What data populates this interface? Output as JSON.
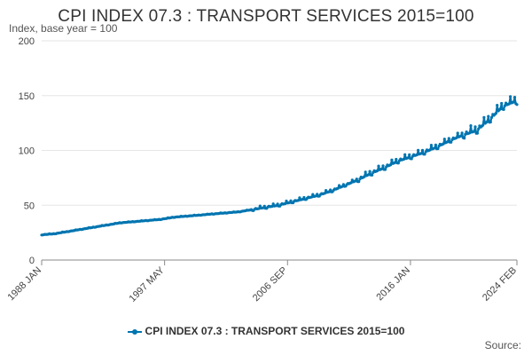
{
  "chart_data": {
    "type": "line",
    "title": "CPI INDEX 07.3 : TRANSPORT SERVICES 2015=100",
    "ylabel": "Index, base year = 100",
    "xlabel": "",
    "ylim": [
      0,
      200
    ],
    "yticks": [
      0,
      50,
      100,
      150,
      200
    ],
    "x_range": [
      "1988 JAN",
      "2024 FEB"
    ],
    "xtick_labels": [
      "1988 JAN",
      "1997 MAY",
      "2006 SEP",
      "2016 JAN",
      "2024 FEB"
    ],
    "grid": true,
    "legend_position": "bottom",
    "series": [
      {
        "name": "CPI INDEX 07.3 : TRANSPORT SERVICES 2015=100",
        "color": "#0075b0",
        "x": [
          "1988 JAN",
          "1989 JAN",
          "1990 JAN",
          "1991 JAN",
          "1992 JAN",
          "1993 JAN",
          "1994 JAN",
          "1995 JAN",
          "1996 JAN",
          "1997 JAN",
          "1998 JAN",
          "1999 JAN",
          "2000 JAN",
          "2001 JAN",
          "2002 JAN",
          "2003 JAN",
          "2004 JAN",
          "2005 JAN",
          "2006 JAN",
          "2007 JAN",
          "2008 JAN",
          "2009 JAN",
          "2010 JAN",
          "2011 JAN",
          "2012 JAN",
          "2013 JAN",
          "2014 JAN",
          "2015 JAN",
          "2016 JAN",
          "2017 JAN",
          "2018 JAN",
          "2019 JAN",
          "2020 JAN",
          "2021 JAN",
          "2022 JAN",
          "2023 JAN",
          "2024 JAN"
        ],
        "values": [
          23,
          24,
          26,
          28,
          30,
          32,
          34,
          35,
          36,
          37,
          39,
          40,
          41,
          42,
          43,
          44,
          46,
          48,
          50,
          53,
          56,
          59,
          63,
          68,
          73,
          79,
          84,
          90,
          94,
          98,
          103,
          109,
          114,
          118,
          128,
          140,
          145
        ]
      }
    ]
  },
  "legend": {
    "label": "CPI INDEX 07.3 : TRANSPORT SERVICES 2015=100"
  },
  "footer": {
    "source": "Source:"
  }
}
